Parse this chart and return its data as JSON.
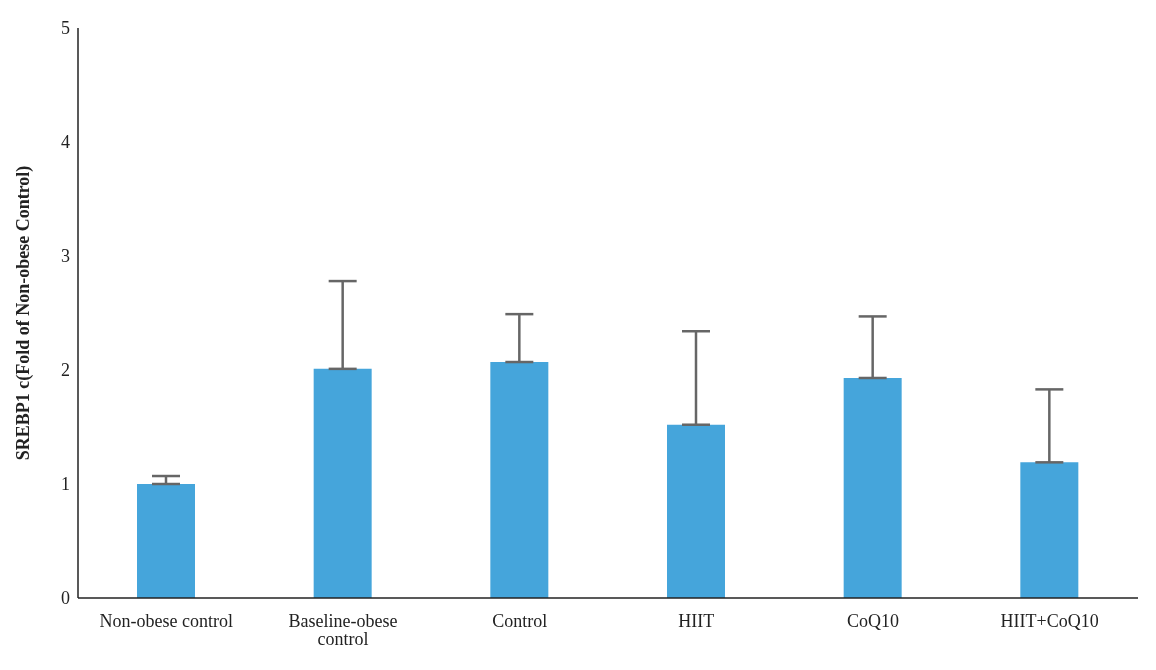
{
  "chart_data": {
    "type": "bar",
    "ylabel": "SREBP1 c(Fold of Non-obese Control)",
    "categories": [
      "Non-obese control",
      "Baseline-obese control",
      "Control",
      "HIIT",
      "CoQ10",
      "HIIT+CoQ10"
    ],
    "values": [
      1.0,
      2.01,
      2.07,
      1.52,
      1.93,
      1.19
    ],
    "errors": [
      [
        1.0,
        1.07
      ],
      [
        2.01,
        2.78
      ],
      [
        2.07,
        2.49
      ],
      [
        1.52,
        2.34
      ],
      [
        1.93,
        2.47
      ],
      [
        1.19,
        1.83
      ]
    ],
    "color": "#45a5db",
    "ylim": [
      0,
      5
    ],
    "yticks": [
      0,
      1,
      2,
      3,
      4,
      5
    ],
    "grid": false,
    "legend": false
  }
}
